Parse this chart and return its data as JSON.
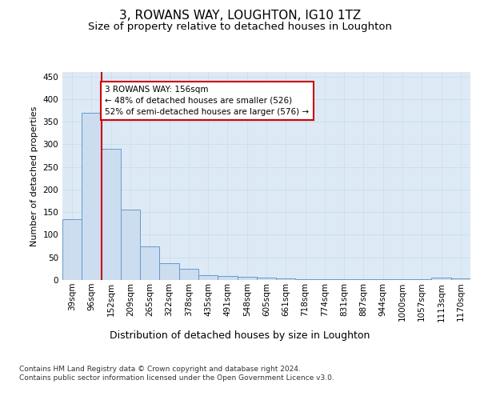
{
  "title": "3, ROWANS WAY, LOUGHTON, IG10 1TZ",
  "subtitle": "Size of property relative to detached houses in Loughton",
  "xlabel": "Distribution of detached houses by size in Loughton",
  "ylabel": "Number of detached properties",
  "categories": [
    "39sqm",
    "96sqm",
    "152sqm",
    "209sqm",
    "265sqm",
    "322sqm",
    "378sqm",
    "435sqm",
    "491sqm",
    "548sqm",
    "605sqm",
    "661sqm",
    "718sqm",
    "774sqm",
    "831sqm",
    "887sqm",
    "944sqm",
    "1000sqm",
    "1057sqm",
    "1113sqm",
    "1170sqm"
  ],
  "values": [
    135,
    370,
    290,
    155,
    75,
    37,
    25,
    10,
    8,
    7,
    5,
    4,
    2,
    1,
    1,
    1,
    1,
    1,
    1,
    5,
    3
  ],
  "bar_color": "#ccddf0",
  "bar_edge_color": "#6699cc",
  "grid_color": "#ccddee",
  "background_color": "#ddeaf5",
  "red_line_index": 2,
  "annotation_text": "3 ROWANS WAY: 156sqm\n← 48% of detached houses are smaller (526)\n52% of semi-detached houses are larger (576) →",
  "annotation_box_color": "#ffffff",
  "annotation_box_edge": "#cc0000",
  "red_line_color": "#cc0000",
  "ylim": [
    0,
    460
  ],
  "yticks": [
    0,
    50,
    100,
    150,
    200,
    250,
    300,
    350,
    400,
    450
  ],
  "footer": "Contains HM Land Registry data © Crown copyright and database right 2024.\nContains public sector information licensed under the Open Government Licence v3.0.",
  "title_fontsize": 11,
  "subtitle_fontsize": 9.5,
  "xlabel_fontsize": 9,
  "ylabel_fontsize": 8,
  "tick_fontsize": 7.5,
  "footer_fontsize": 6.5
}
